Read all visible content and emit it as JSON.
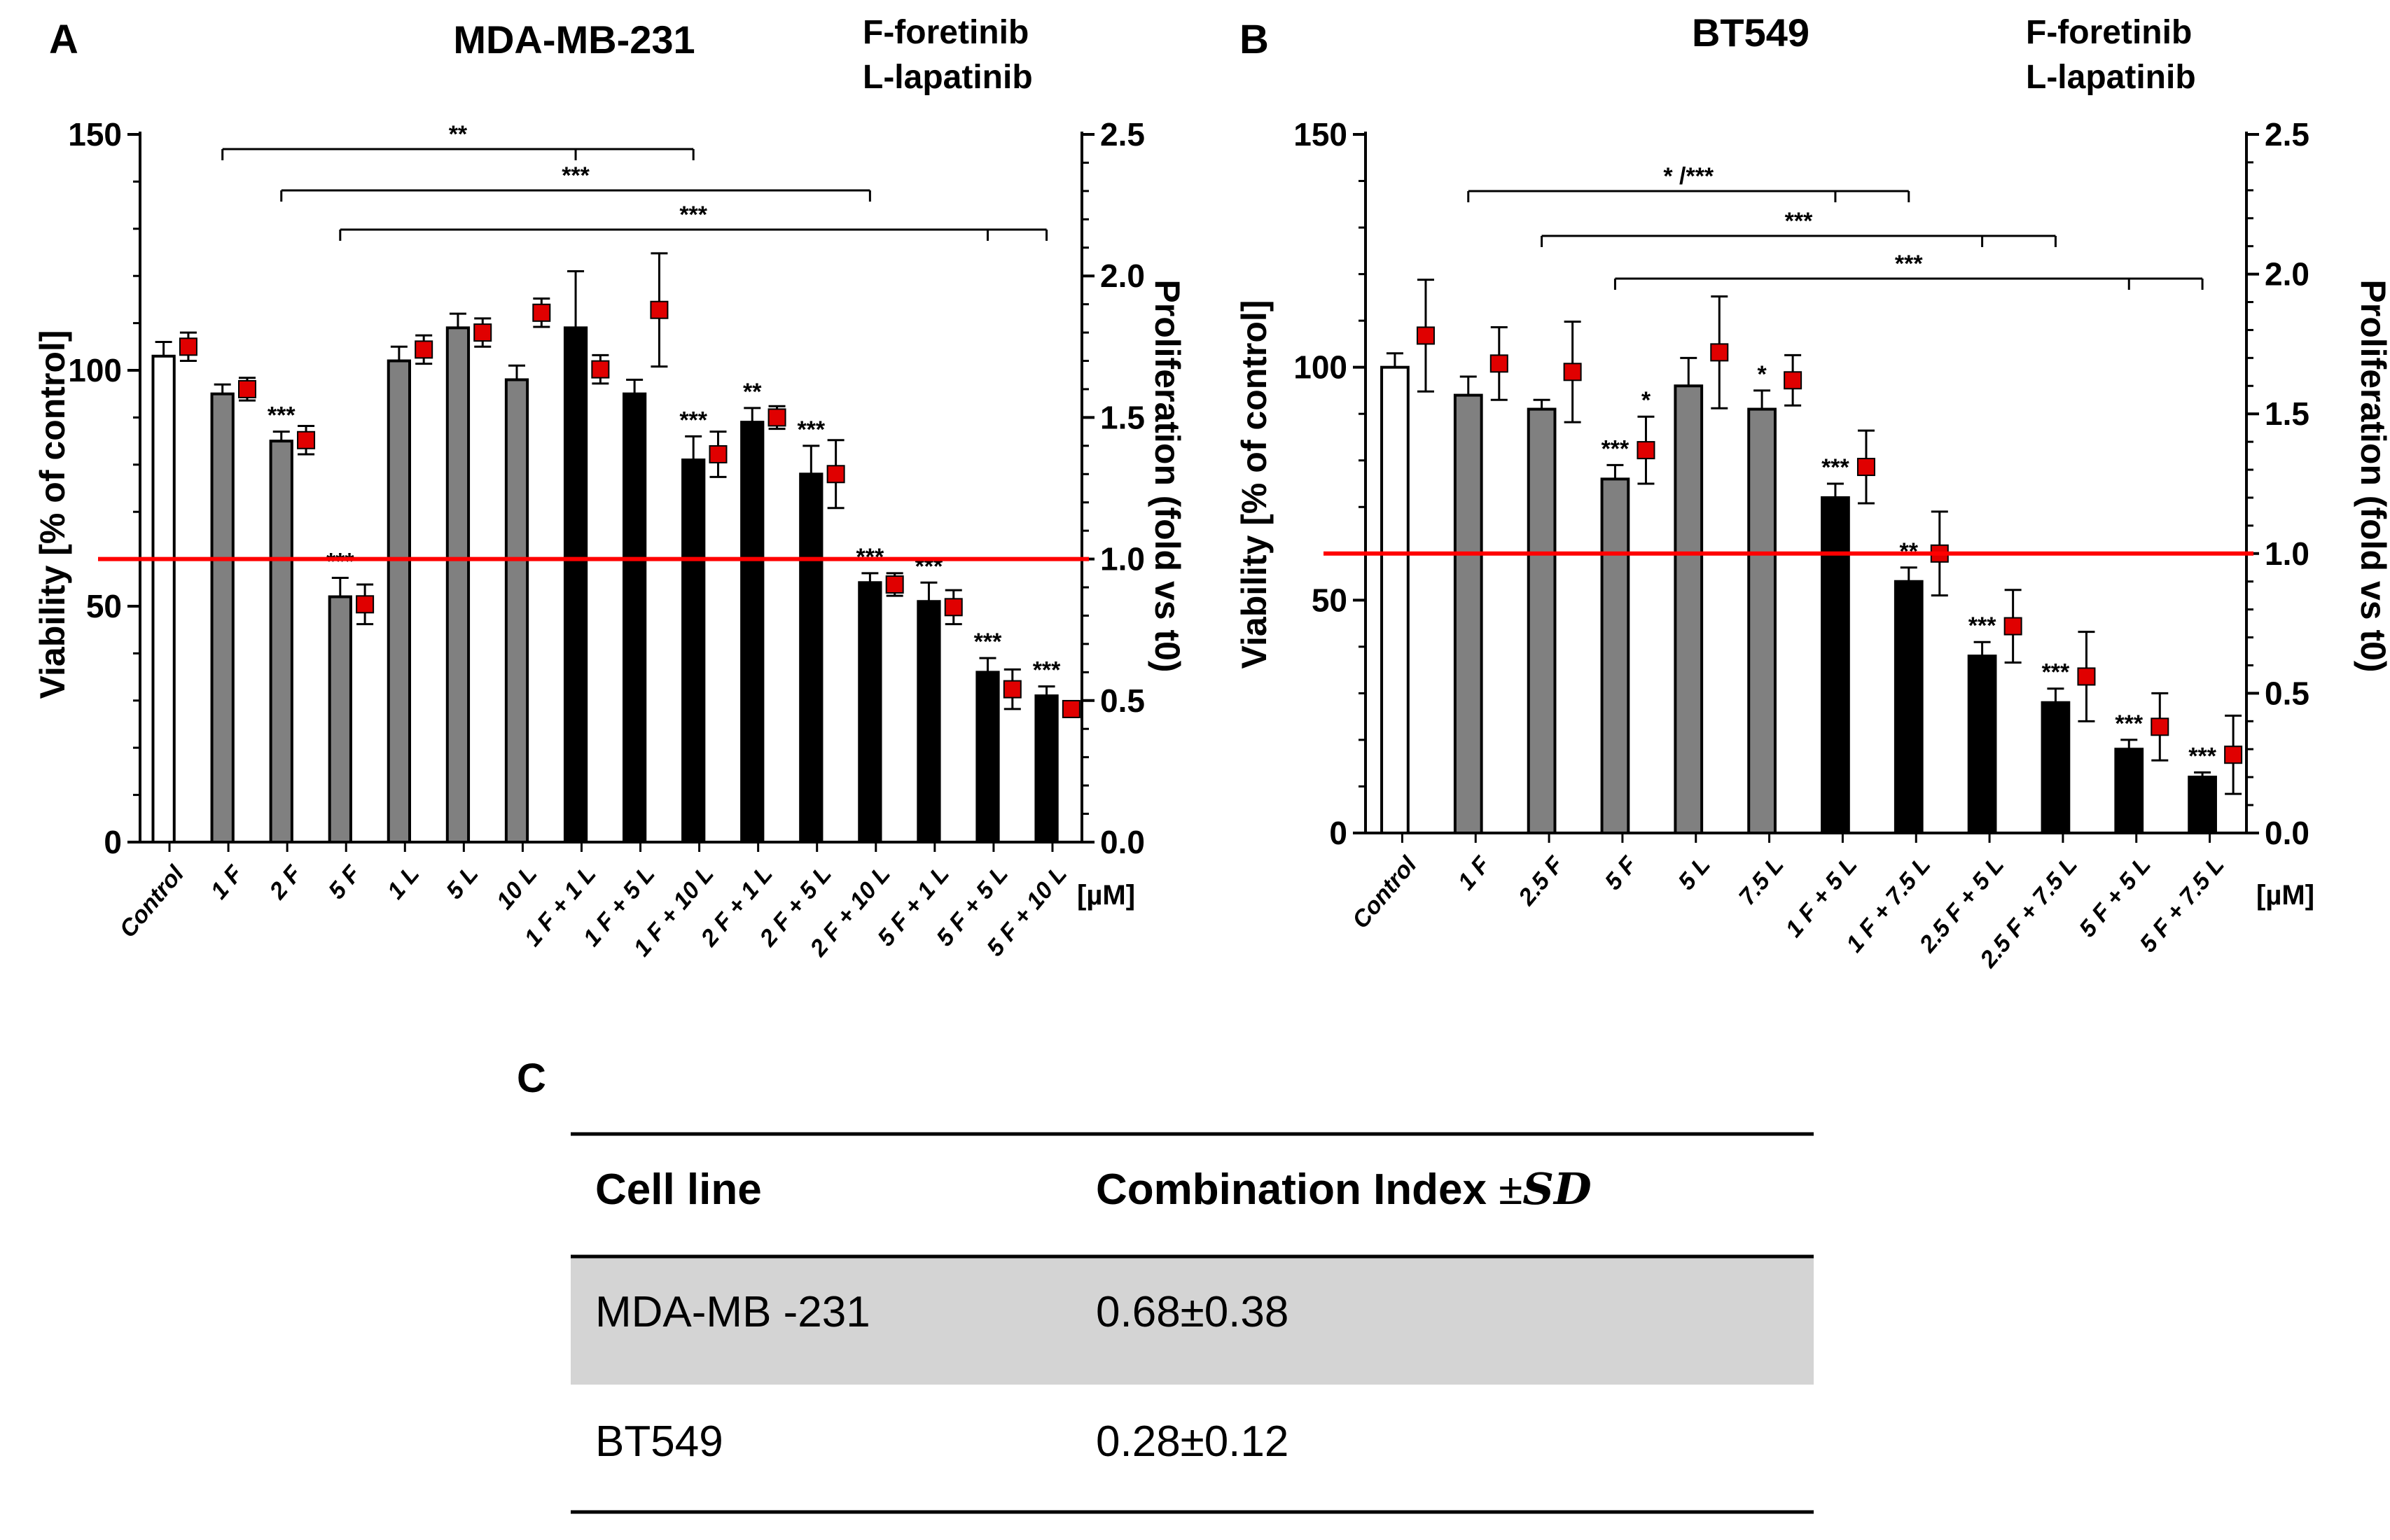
{
  "chart_data": [
    {
      "panel": "A",
      "type": "bar",
      "title": "MDA-MB-231",
      "legend": [
        "F-foretinib",
        "L-lapatinib"
      ],
      "ylabel": "Viability [% of control]",
      "y2label": "Proliferation (fold vs t0)",
      "ylim": [
        0,
        150
      ],
      "y2lim": [
        0,
        2.5
      ],
      "yticks": [
        "0",
        "50",
        "100",
        "150"
      ],
      "y2ticks": [
        "0.0",
        "0.5",
        "1.0",
        "1.5",
        "2.0",
        "2.5"
      ],
      "unit": "[µM]",
      "reference_line": {
        "axis": "y2",
        "value": 1.0,
        "color": "#ff0000"
      },
      "categories": [
        "Control",
        "1 F",
        "2 F",
        "5 F",
        "1 L",
        "5 L",
        "10 L",
        "1 F + 1 L",
        "1 F + 5 L",
        "1 F + 10 L",
        "2 F + 1 L",
        "2 F + 5 L",
        "2 F + 10 L",
        "5 F + 1 L",
        "5 F + 5 L",
        "5 F + 10 L"
      ],
      "bar_fill": [
        "white",
        "gray",
        "gray",
        "gray",
        "gray",
        "gray",
        "gray",
        "black",
        "black",
        "black",
        "black",
        "black",
        "black",
        "black",
        "black",
        "black"
      ],
      "series": [
        {
          "name": "Viability",
          "axis": "y",
          "values": [
            103,
            95,
            85,
            52,
            102,
            109,
            98,
            109,
            95,
            81,
            89,
            78,
            55,
            51,
            36,
            31
          ],
          "errors": [
            3,
            2,
            2,
            4,
            3,
            3,
            3,
            12,
            3,
            5,
            3,
            6,
            2,
            4,
            3,
            2
          ]
        },
        {
          "name": "Proliferation",
          "axis": "y2",
          "marker": "square",
          "color": "#e00000",
          "values": [
            1.75,
            1.6,
            1.42,
            0.84,
            1.74,
            1.8,
            1.87,
            1.67,
            1.88,
            1.37,
            1.5,
            1.3,
            0.91,
            0.83,
            0.54,
            0.47
          ],
          "errors": [
            0.05,
            0.04,
            0.05,
            0.07,
            0.05,
            0.05,
            0.05,
            0.05,
            0.2,
            0.08,
            0.04,
            0.12,
            0.04,
            0.06,
            0.07,
            0.02
          ]
        }
      ],
      "significance": [
        "",
        "",
        "***",
        "***",
        "",
        "",
        "",
        "",
        "",
        "***",
        "**",
        "***",
        "***",
        "***",
        "***",
        "***"
      ],
      "brackets": [
        {
          "label": "**",
          "from": "1 F",
          "to": "1 F + 10 L",
          "ticks": [
            "1 F + 1 L"
          ]
        },
        {
          "label": "***",
          "from": "2 F",
          "to": "2 F + 10 L",
          "ticks": []
        },
        {
          "label": "***",
          "from": "5 F",
          "to": "5 F + 10 L",
          "ticks": [
            "5 F + 5 L"
          ]
        }
      ]
    },
    {
      "panel": "B",
      "type": "bar",
      "title": "BT549",
      "legend": [
        "F-foretinib",
        "L-lapatinib"
      ],
      "ylabel": "Viability [% of control]",
      "y2label": "Proliferation (fold vs t0)",
      "ylim": [
        0,
        150
      ],
      "y2lim": [
        0,
        2.5
      ],
      "yticks": [
        "0",
        "50",
        "100",
        "150"
      ],
      "y2ticks": [
        "0.0",
        "0.5",
        "1.0",
        "1.5",
        "2.0",
        "2.5"
      ],
      "unit": "[µM]",
      "reference_line": {
        "axis": "y2",
        "value": 1.0,
        "color": "#ff0000"
      },
      "categories": [
        "Control",
        "1 F",
        "2.5 F",
        "5 F",
        "5 L",
        "7.5 L",
        "1 F + 5 L",
        "1 F + 7.5 L",
        "2.5 F + 5 L",
        "2.5 F + 7.5 L",
        "5 F + 5 L",
        "5 F + 7.5 L"
      ],
      "bar_fill": [
        "white",
        "gray",
        "gray",
        "gray",
        "gray",
        "gray",
        "black",
        "black",
        "black",
        "black",
        "black",
        "black"
      ],
      "series": [
        {
          "name": "Viability",
          "axis": "y",
          "values": [
            100,
            94,
            91,
            76,
            96,
            91,
            72,
            54,
            38,
            28,
            18,
            12
          ],
          "errors": [
            3,
            4,
            2,
            3,
            6,
            4,
            3,
            3,
            3,
            3,
            2,
            1
          ]
        },
        {
          "name": "Proliferation",
          "axis": "y2",
          "marker": "square",
          "color": "#e00000",
          "values": [
            1.78,
            1.68,
            1.65,
            1.37,
            1.72,
            1.62,
            1.31,
            1.0,
            0.74,
            0.56,
            0.38,
            0.28
          ],
          "errors": [
            0.2,
            0.13,
            0.18,
            0.12,
            0.2,
            0.09,
            0.13,
            0.15,
            0.13,
            0.16,
            0.12,
            0.14
          ]
        }
      ],
      "significance": [
        "",
        "",
        "",
        "***",
        "",
        "*",
        "***",
        "**",
        "***",
        "***",
        "***",
        "***"
      ],
      "proliferation_significance": [
        "",
        "",
        "",
        "*",
        "",
        "",
        "",
        "",
        "",
        "",
        "",
        ""
      ],
      "brackets": [
        {
          "label": "* /***",
          "from": "1 F",
          "to": "1 F + 7.5 L",
          "ticks": [
            "1 F + 5 L"
          ]
        },
        {
          "label": "***",
          "from": "2.5 F",
          "to": "2.5 F + 7.5 L",
          "ticks": [
            "2.5 F + 5 L"
          ]
        },
        {
          "label": "***",
          "from": "5 F",
          "to": "5 F + 7.5 L",
          "ticks": [
            "5 F + 5 L"
          ]
        }
      ]
    }
  ],
  "table": {
    "panel": "C",
    "headers": [
      "Cell line",
      "Combination Index "
    ],
    "header_pm": "±",
    "header_sd": "SD",
    "rows": [
      [
        "MDA-MB -231",
        "0.68±0.38"
      ],
      [
        "BT549",
        "0.28±0.12"
      ]
    ]
  },
  "colors": {
    "bar_gray": "#808080",
    "bar_black": "#000000",
    "marker_red": "#e00000",
    "ref_line": "#ff0000",
    "table_row_shade": "#d4d4d4"
  }
}
